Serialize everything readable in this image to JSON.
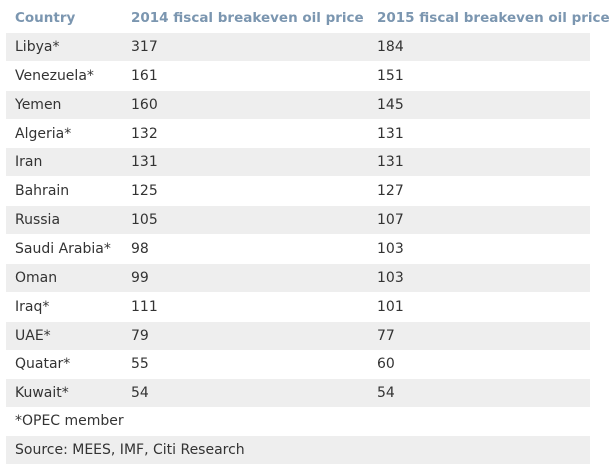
{
  "table": {
    "headers": [
      "Country",
      "2014 fiscal breakeven oil price",
      "2015 fiscal breakeven oil price"
    ],
    "rows": [
      [
        "Libya*",
        "317",
        "184"
      ],
      [
        "Venezuela*",
        "161",
        "151"
      ],
      [
        "Yemen",
        "160",
        "145"
      ],
      [
        "Algeria*",
        "132",
        "131"
      ],
      [
        "Iran",
        "131",
        "131"
      ],
      [
        "Bahrain",
        "125",
        "127"
      ],
      [
        "Russia",
        "105",
        "107"
      ],
      [
        "Saudi Arabia*",
        "98",
        "103"
      ],
      [
        "Oman",
        "99",
        "103"
      ],
      [
        "Iraq*",
        "111",
        "101"
      ],
      [
        "UAE*",
        "79",
        "77"
      ],
      [
        "Quatar*",
        "55",
        "60"
      ],
      [
        "Kuwait*",
        "54",
        "54"
      ]
    ]
  },
  "footnote": "*OPEC member",
  "source": "Source: MEES, IMF, Citi Research",
  "colors": {
    "header_text": "#7b96b0",
    "stripe": "#eeeeee",
    "body_text": "#333333"
  }
}
